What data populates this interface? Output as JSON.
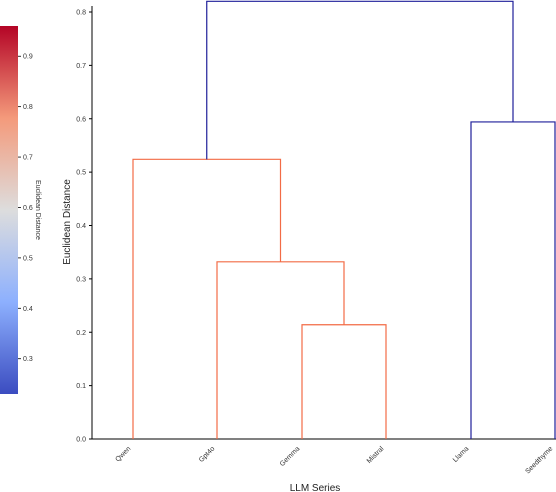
{
  "chart_data": {
    "type": "dendrogram",
    "xlabel": "LLM Series",
    "ylabel": "Euclidean Distance",
    "ylim": [
      0,
      0.8
    ],
    "yticks": [
      "0.0",
      "0.1",
      "0.2",
      "0.3",
      "0.4",
      "0.5",
      "0.6",
      "0.7",
      "0.8"
    ],
    "leaves": [
      "Qwen",
      "Gpt4o",
      "Gemma",
      "Mistral",
      "Llama",
      "Seedthyme"
    ],
    "merges": [
      {
        "left": "Gemma",
        "right": "Mistral",
        "height": 0.214,
        "color": "#f26b45"
      },
      {
        "left": "Gpt4o",
        "right": "Gemma+Mistral",
        "height": 0.332,
        "color": "#f26b45"
      },
      {
        "left": "Qwen",
        "right": "Gpt4o+Gemma+Mistral",
        "height": 0.524,
        "color": "#f26b45"
      },
      {
        "left": "Llama",
        "right": "Seedthyme",
        "height": 0.594,
        "color": "#1f1f9a"
      },
      {
        "left": "Qwen-cluster",
        "right": "Llama-cluster",
        "height": 0.82,
        "color": "#1f1f9a"
      }
    ],
    "colorbar": {
      "label": "Euclidean Distance",
      "ticks": [
        "0.3",
        "0.4",
        "0.5",
        "0.6",
        "0.7",
        "0.8",
        "0.9"
      ],
      "range": [
        0.23,
        0.96
      ],
      "colormap": "coolwarm"
    },
    "colors": {
      "cluster_a": "#f26b45",
      "cluster_b": "#1f1f9a"
    },
    "grid": false
  }
}
